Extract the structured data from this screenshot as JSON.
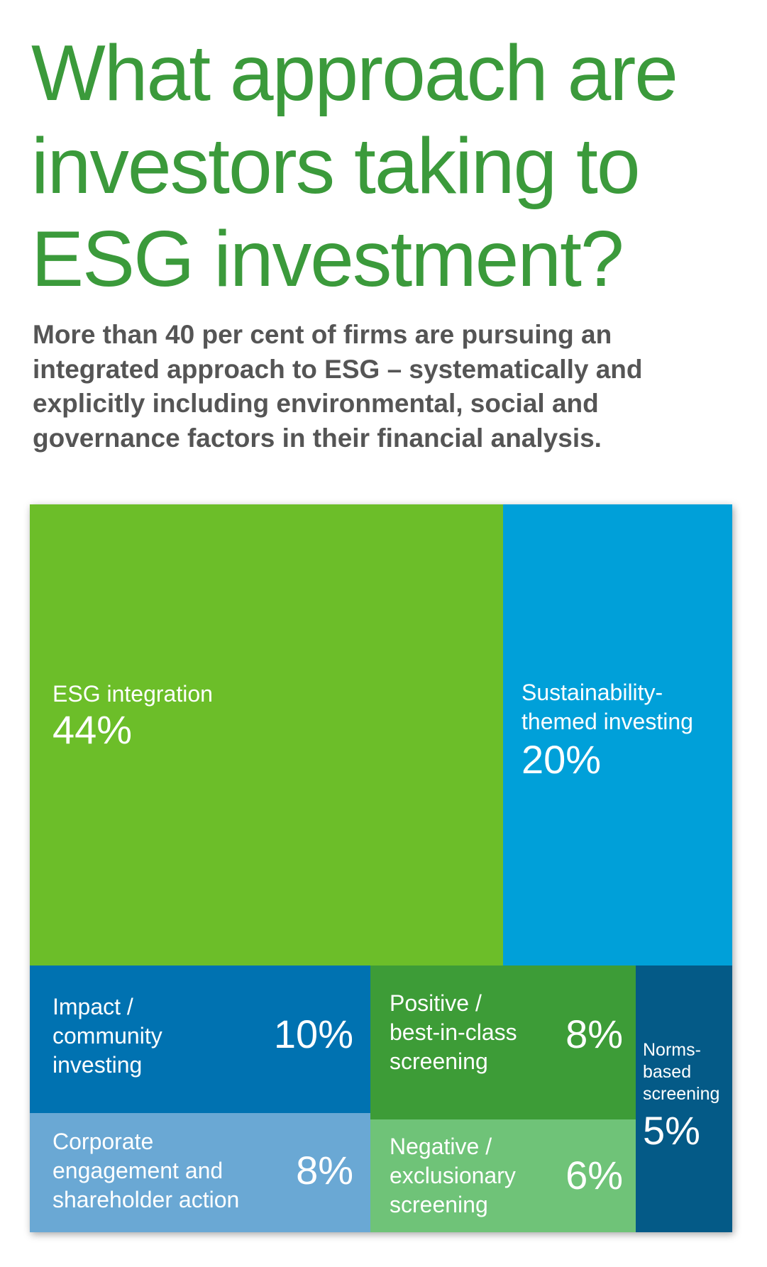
{
  "header": {
    "title_lines": [
      "What approach are",
      "investors taking to",
      "ESG investment?"
    ],
    "subtitle_lines": [
      "More than 40 per cent of firms are pursuing an",
      "integrated approach to ESG – systematically and",
      "explicitly including environmental, social and",
      "governance factors in their financial analysis."
    ]
  },
  "chart_data": {
    "type": "treemap",
    "title": "What approach are investors taking to ESG investment?",
    "series": [
      {
        "name": "ESG integration",
        "value": 44,
        "value_label": "44%",
        "label_lines": [
          "ESG integration"
        ],
        "color": "#6cbe29"
      },
      {
        "name": "Sustainability-themed investing",
        "value": 20,
        "value_label": "20%",
        "label_lines": [
          "Sustainability-",
          "themed investing"
        ],
        "color": "#00a0d9"
      },
      {
        "name": "Impact / community investing",
        "value": 10,
        "value_label": "10%",
        "label_lines": [
          "Impact /",
          "community",
          "investing"
        ],
        "color": "#0072b1"
      },
      {
        "name": "Corporate engagement and shareholder action",
        "value": 8,
        "value_label": "8%",
        "label_lines": [
          "Corporate",
          "engagement and",
          "shareholder action"
        ],
        "color": "#6aa8d4"
      },
      {
        "name": "Positive / best-in-class screening",
        "value": 8,
        "value_label": "8%",
        "label_lines": [
          "Positive /",
          "best-in-class",
          "screening"
        ],
        "color": "#3d9c37"
      },
      {
        "name": "Negative / exclusionary screening",
        "value": 6,
        "value_label": "6%",
        "label_lines": [
          "Negative /",
          "exclusionary",
          "screening"
        ],
        "color": "#6fc378"
      },
      {
        "name": "Norms-based screening",
        "value": 5,
        "value_label": "5%",
        "label_lines": [
          "Norms-",
          "based",
          "screening"
        ],
        "color": "#045a87"
      }
    ]
  }
}
